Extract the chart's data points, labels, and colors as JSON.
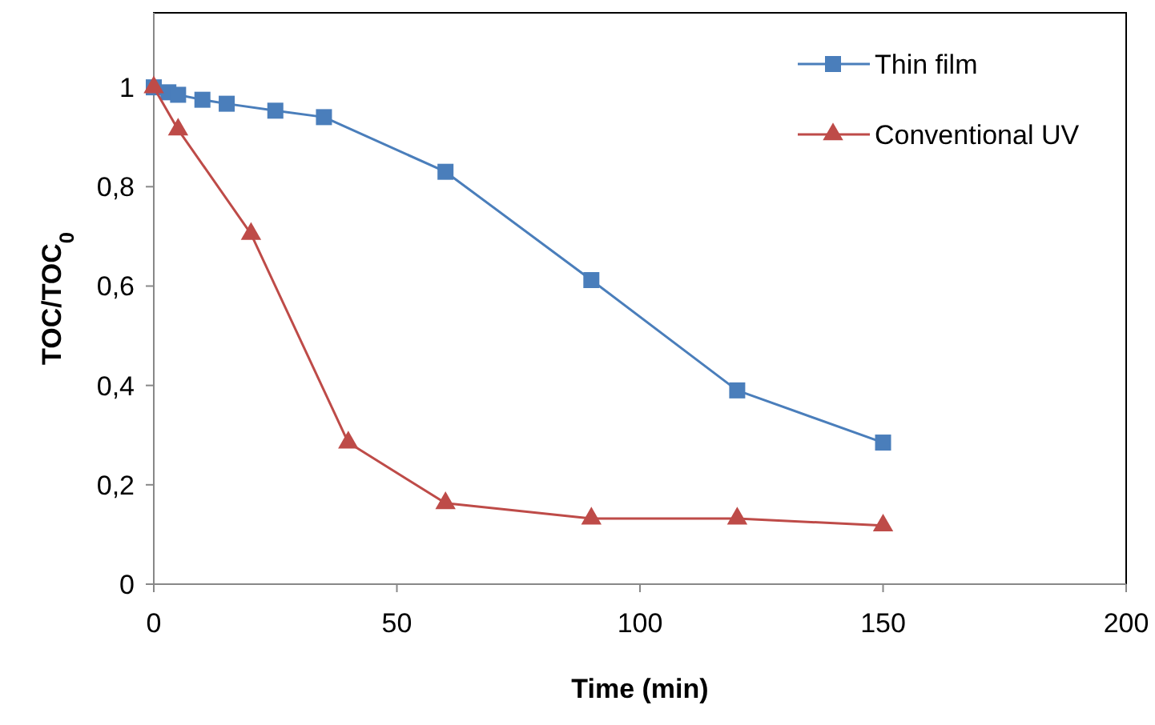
{
  "chart_data": {
    "type": "line",
    "xlabel": "Time (min)",
    "ylabel": "TOC/TOC$_{0}$",
    "xlim": [
      0,
      200
    ],
    "xticks": [
      0,
      50,
      100,
      150,
      200
    ],
    "ylim": [
      0,
      1.15
    ],
    "yticks": [
      0,
      {
        "value": 0.2,
        "label": "0,2"
      },
      {
        "value": 0.4,
        "label": "0,4"
      },
      {
        "value": 0.6,
        "label": "0,6"
      },
      {
        "value": 0.8,
        "label": "0,8"
      },
      1
    ],
    "grid": false,
    "legend": "top right",
    "line_style": "solid",
    "series": [
      {
        "name": "Thin film",
        "color": "#4a7ebb",
        "marker": "square",
        "x": [
          0,
          3,
          5,
          10,
          15,
          25,
          35,
          60,
          90,
          120,
          150
        ],
        "values": [
          1,
          0.99,
          0.985,
          0.975,
          0.967,
          0.953,
          0.94,
          0.83,
          0.612,
          0.39,
          0.285
        ]
      },
      {
        "name": "Conventional UV",
        "color": "#be4b48",
        "marker": "triangle",
        "x": [
          0,
          5,
          20,
          40,
          60,
          90,
          120,
          150
        ],
        "values": [
          1,
          0.915,
          0.705,
          0.285,
          0.163,
          0.132,
          0.132,
          0.118
        ]
      }
    ]
  }
}
